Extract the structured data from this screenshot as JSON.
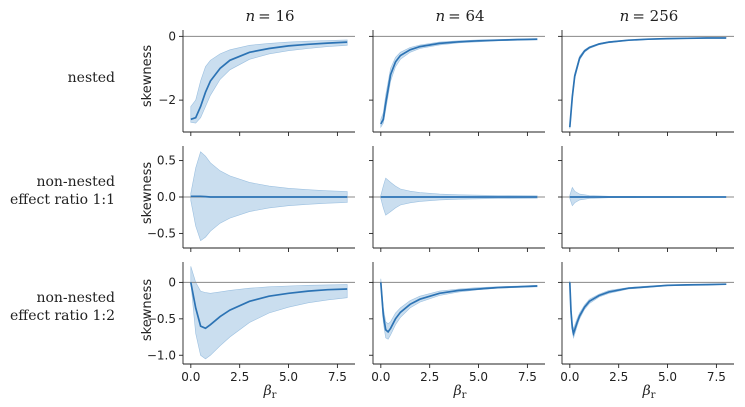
{
  "figure": {
    "column_titles": [
      {
        "prefix": "n",
        "value": "= 16"
      },
      {
        "prefix": "n",
        "value": "= 64"
      },
      {
        "prefix": "n",
        "value": "= 256"
      }
    ],
    "row_labels": [
      [
        "nested"
      ],
      [
        "non-nested",
        "effect ratio 1:1"
      ],
      [
        "non-nested",
        "effect ratio 1:2"
      ]
    ],
    "ylabel": "skewness",
    "xlabel_main": "β",
    "xlabel_sub": "r",
    "x_ticks": [
      "0.0",
      "2.5",
      "5.0",
      "7.5"
    ],
    "colors": {
      "line": "#2c73b4",
      "band": "#b8d3ea",
      "band_edge": "#9cc0e0",
      "ref_line": "#888888",
      "axis": "#222222"
    }
  },
  "chart_data": [
    {
      "type": "area",
      "panel": "nested n=16",
      "row": 0,
      "col": 0,
      "xlim": [
        -0.4,
        8.4
      ],
      "ylim": [
        -3.0,
        0.2
      ],
      "yticks": [
        0,
        -2
      ],
      "hline": 0,
      "x": [
        0.0,
        0.25,
        0.5,
        0.75,
        1.0,
        1.5,
        2.0,
        3.0,
        4.0,
        5.0,
        6.0,
        7.0,
        8.0
      ],
      "series": [
        {
          "role": "mean",
          "values": [
            -2.6,
            -2.55,
            -2.2,
            -1.75,
            -1.4,
            -1.0,
            -0.75,
            -0.5,
            -0.38,
            -0.3,
            -0.25,
            -0.21,
            -0.18
          ]
        },
        {
          "role": "lower",
          "values": [
            -2.7,
            -2.72,
            -2.55,
            -2.2,
            -1.85,
            -1.35,
            -1.05,
            -0.72,
            -0.55,
            -0.45,
            -0.38,
            -0.32,
            -0.28
          ]
        },
        {
          "role": "upper",
          "values": [
            -2.2,
            -2.0,
            -1.4,
            -0.95,
            -0.75,
            -0.55,
            -0.42,
            -0.28,
            -0.22,
            -0.18,
            -0.15,
            -0.13,
            -0.11
          ]
        }
      ]
    },
    {
      "type": "area",
      "panel": "nested n=64",
      "row": 0,
      "col": 1,
      "xlim": [
        -0.4,
        8.4
      ],
      "ylim": [
        -3.0,
        0.2
      ],
      "yticks": [
        0,
        -2
      ],
      "hline": 0,
      "x": [
        0.0,
        0.125,
        0.25,
        0.5,
        0.75,
        1.0,
        1.5,
        2.0,
        3.0,
        4.0,
        5.0,
        6.0,
        7.0,
        8.0
      ],
      "series": [
        {
          "role": "mean",
          "values": [
            -2.75,
            -2.6,
            -2.1,
            -1.2,
            -0.8,
            -0.6,
            -0.42,
            -0.32,
            -0.22,
            -0.17,
            -0.14,
            -0.12,
            -0.1,
            -0.09
          ]
        },
        {
          "role": "lower",
          "values": [
            -2.85,
            -2.72,
            -2.3,
            -1.4,
            -0.95,
            -0.72,
            -0.5,
            -0.38,
            -0.27,
            -0.2,
            -0.17,
            -0.14,
            -0.12,
            -0.11
          ]
        },
        {
          "role": "upper",
          "values": [
            -2.6,
            -2.4,
            -1.85,
            -1.0,
            -0.66,
            -0.5,
            -0.35,
            -0.27,
            -0.18,
            -0.14,
            -0.11,
            -0.1,
            -0.08,
            -0.07
          ]
        }
      ]
    },
    {
      "type": "area",
      "panel": "nested n=256",
      "row": 0,
      "col": 2,
      "xlim": [
        -0.4,
        8.4
      ],
      "ylim": [
        -3.0,
        0.2
      ],
      "yticks": [
        0,
        -2
      ],
      "hline": 0,
      "x": [
        0.0,
        0.125,
        0.25,
        0.5,
        0.75,
        1.0,
        1.5,
        2.0,
        3.0,
        4.0,
        5.0,
        6.0,
        7.0,
        8.0
      ],
      "series": [
        {
          "role": "mean",
          "values": [
            -2.85,
            -1.9,
            -1.25,
            -0.68,
            -0.46,
            -0.35,
            -0.24,
            -0.18,
            -0.12,
            -0.09,
            -0.07,
            -0.06,
            -0.05,
            -0.05
          ]
        },
        {
          "role": "lower",
          "values": [
            -2.9,
            -2.0,
            -1.33,
            -0.74,
            -0.5,
            -0.38,
            -0.26,
            -0.2,
            -0.13,
            -0.1,
            -0.08,
            -0.07,
            -0.06,
            -0.05
          ]
        },
        {
          "role": "upper",
          "values": [
            -2.8,
            -1.8,
            -1.17,
            -0.62,
            -0.42,
            -0.32,
            -0.22,
            -0.16,
            -0.11,
            -0.08,
            -0.06,
            -0.05,
            -0.04,
            -0.04
          ]
        }
      ]
    },
    {
      "type": "area",
      "panel": "non-nested 1:1 n=16",
      "row": 1,
      "col": 0,
      "xlim": [
        -0.4,
        8.4
      ],
      "ylim": [
        -0.7,
        0.7
      ],
      "yticks": [
        0.5,
        0.0,
        -0.5
      ],
      "hline": 0,
      "x": [
        0.0,
        0.25,
        0.5,
        0.75,
        1.0,
        1.5,
        2.0,
        3.0,
        4.0,
        5.0,
        6.0,
        7.0,
        8.0
      ],
      "series": [
        {
          "role": "mean",
          "values": [
            0.01,
            0.01,
            0.01,
            0.005,
            0.0,
            0.0,
            0.0,
            0.0,
            0.0,
            0.0,
            0.0,
            0.0,
            0.0
          ]
        },
        {
          "role": "lower",
          "values": [
            -0.05,
            -0.4,
            -0.6,
            -0.55,
            -0.47,
            -0.36,
            -0.29,
            -0.2,
            -0.15,
            -0.12,
            -0.1,
            -0.085,
            -0.075
          ]
        },
        {
          "role": "upper",
          "values": [
            0.05,
            0.4,
            0.62,
            0.56,
            0.47,
            0.36,
            0.29,
            0.2,
            0.15,
            0.12,
            0.1,
            0.085,
            0.075
          ]
        }
      ]
    },
    {
      "type": "area",
      "panel": "non-nested 1:1 n=64",
      "row": 1,
      "col": 1,
      "xlim": [
        -0.4,
        8.4
      ],
      "ylim": [
        -0.7,
        0.7
      ],
      "yticks": [
        0.5,
        0.0,
        -0.5
      ],
      "hline": 0,
      "x": [
        0.0,
        0.125,
        0.25,
        0.5,
        0.75,
        1.0,
        1.5,
        2.0,
        3.0,
        4.0,
        5.0,
        6.0,
        7.0,
        8.0
      ],
      "series": [
        {
          "role": "mean",
          "values": [
            0.0,
            0.0,
            0.0,
            0.0,
            0.0,
            0.0,
            0.0,
            0.0,
            0.0,
            0.0,
            0.0,
            0.0,
            0.0,
            0.0
          ]
        },
        {
          "role": "lower",
          "values": [
            -0.02,
            -0.15,
            -0.25,
            -0.2,
            -0.15,
            -0.11,
            -0.08,
            -0.06,
            -0.04,
            -0.03,
            -0.025,
            -0.02,
            -0.018,
            -0.016
          ]
        },
        {
          "role": "upper",
          "values": [
            0.02,
            0.15,
            0.26,
            0.2,
            0.15,
            0.11,
            0.08,
            0.06,
            0.04,
            0.03,
            0.025,
            0.02,
            0.018,
            0.016
          ]
        }
      ]
    },
    {
      "type": "area",
      "panel": "non-nested 1:1 n=256",
      "row": 1,
      "col": 2,
      "xlim": [
        -0.4,
        8.4
      ],
      "ylim": [
        -0.7,
        0.7
      ],
      "yticks": [
        0.5,
        0.0,
        -0.5
      ],
      "hline": 0,
      "x": [
        0.0,
        0.125,
        0.25,
        0.5,
        0.75,
        1.0,
        1.5,
        2.0,
        3.0,
        4.0,
        5.0,
        6.0,
        7.0,
        8.0
      ],
      "series": [
        {
          "role": "mean",
          "values": [
            0.0,
            0.0,
            0.0,
            0.0,
            0.0,
            0.0,
            0.0,
            0.0,
            0.0,
            0.0,
            0.0,
            0.0,
            0.0,
            0.0
          ]
        },
        {
          "role": "lower",
          "values": [
            -0.02,
            -0.12,
            -0.08,
            -0.04,
            -0.03,
            -0.02,
            -0.015,
            -0.01,
            -0.008,
            -0.006,
            -0.005,
            -0.004,
            -0.004,
            -0.003
          ]
        },
        {
          "role": "upper",
          "values": [
            0.02,
            0.13,
            0.08,
            0.04,
            0.03,
            0.02,
            0.015,
            0.01,
            0.008,
            0.006,
            0.005,
            0.004,
            0.004,
            0.003
          ]
        }
      ]
    },
    {
      "type": "area",
      "panel": "non-nested 1:2 n=16",
      "row": 2,
      "col": 0,
      "xlim": [
        -0.4,
        8.4
      ],
      "ylim": [
        -1.12,
        0.28
      ],
      "yticks": [
        0.0,
        -0.5,
        -1.0
      ],
      "hline": 0,
      "x": [
        0.0,
        0.25,
        0.5,
        0.75,
        1.0,
        1.5,
        2.0,
        3.0,
        4.0,
        5.0,
        6.0,
        7.0,
        8.0
      ],
      "series": [
        {
          "role": "mean",
          "values": [
            0.0,
            -0.35,
            -0.6,
            -0.63,
            -0.58,
            -0.47,
            -0.38,
            -0.26,
            -0.19,
            -0.15,
            -0.12,
            -0.1,
            -0.09
          ]
        },
        {
          "role": "lower",
          "values": [
            0.0,
            -0.7,
            -1.0,
            -1.05,
            -1.0,
            -0.87,
            -0.75,
            -0.55,
            -0.42,
            -0.34,
            -0.28,
            -0.24,
            -0.21
          ]
        },
        {
          "role": "upper",
          "values": [
            0.22,
            0.0,
            -0.12,
            -0.14,
            -0.15,
            -0.13,
            -0.11,
            -0.08,
            -0.06,
            -0.05,
            -0.04,
            -0.035,
            -0.03
          ]
        }
      ]
    },
    {
      "type": "area",
      "panel": "non-nested 1:2 n=64",
      "row": 2,
      "col": 1,
      "xlim": [
        -0.4,
        8.4
      ],
      "ylim": [
        -1.12,
        0.28
      ],
      "yticks": [
        0.0,
        -0.5,
        -1.0
      ],
      "hline": 0,
      "x": [
        0.0,
        0.125,
        0.25,
        0.375,
        0.5,
        0.75,
        1.0,
        1.5,
        2.0,
        3.0,
        4.0,
        5.0,
        6.0,
        7.0,
        8.0
      ],
      "series": [
        {
          "role": "mean",
          "values": [
            0.0,
            -0.45,
            -0.65,
            -0.68,
            -0.63,
            -0.5,
            -0.41,
            -0.3,
            -0.23,
            -0.15,
            -0.11,
            -0.09,
            -0.07,
            -0.06,
            -0.05
          ]
        },
        {
          "role": "lower",
          "values": [
            0.0,
            -0.55,
            -0.76,
            -0.78,
            -0.72,
            -0.58,
            -0.48,
            -0.35,
            -0.27,
            -0.18,
            -0.13,
            -0.1,
            -0.08,
            -0.07,
            -0.06
          ]
        },
        {
          "role": "upper",
          "values": [
            0.05,
            -0.35,
            -0.54,
            -0.57,
            -0.54,
            -0.42,
            -0.35,
            -0.25,
            -0.19,
            -0.12,
            -0.09,
            -0.07,
            -0.06,
            -0.05,
            -0.04
          ]
        }
      ]
    },
    {
      "type": "area",
      "panel": "non-nested 1:2 n=256",
      "row": 2,
      "col": 2,
      "xlim": [
        -0.4,
        8.4
      ],
      "ylim": [
        -1.12,
        0.28
      ],
      "yticks": [
        0.0,
        -0.5,
        -1.0
      ],
      "hline": 0,
      "x": [
        0.0,
        0.0625,
        0.125,
        0.1875,
        0.25,
        0.375,
        0.5,
        0.75,
        1.0,
        1.5,
        2.0,
        3.0,
        4.0,
        5.0,
        6.0,
        7.0,
        8.0
      ],
      "series": [
        {
          "role": "mean",
          "values": [
            0.0,
            -0.4,
            -0.62,
            -0.7,
            -0.65,
            -0.55,
            -0.46,
            -0.34,
            -0.26,
            -0.18,
            -0.13,
            -0.08,
            -0.06,
            -0.04,
            -0.035,
            -0.03,
            -0.025
          ]
        },
        {
          "role": "lower",
          "values": [
            0.0,
            -0.46,
            -0.68,
            -0.76,
            -0.71,
            -0.6,
            -0.5,
            -0.37,
            -0.29,
            -0.2,
            -0.15,
            -0.09,
            -0.07,
            -0.05,
            -0.04,
            -0.035,
            -0.03
          ]
        },
        {
          "role": "upper",
          "values": [
            0.02,
            -0.34,
            -0.56,
            -0.64,
            -0.59,
            -0.5,
            -0.42,
            -0.31,
            -0.23,
            -0.16,
            -0.11,
            -0.07,
            -0.05,
            -0.035,
            -0.03,
            -0.025,
            -0.02
          ]
        }
      ]
    }
  ]
}
